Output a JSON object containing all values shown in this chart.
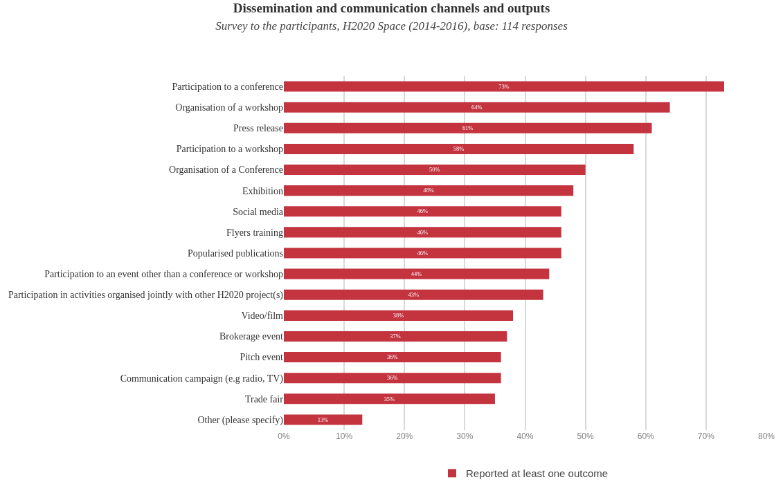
{
  "chart_data": {
    "type": "bar",
    "orientation": "horizontal",
    "title": "Dissemination and communication channels and outputs",
    "subtitle": "Survey to the participants, H2020 Space (2014-2016), base: 114 responses",
    "categories": [
      "Participation to a conference",
      "Organisation of a workshop",
      "Press release",
      "Participation to a workshop",
      "Organisation of a Conference",
      "Exhibition",
      "Social media",
      "Flyers training",
      "Popularised publications",
      "Participation to an event other than a conference or workshop",
      "Participation in activities organised jointly with other H2020 project(s)",
      "Video/film",
      "Brokerage event",
      "Pitch event",
      "Communication campaign (e.g radio, TV)",
      "Trade fair",
      "Other (please specify)"
    ],
    "series": [
      {
        "name": "Reported at least one outcome",
        "color": "#c3343f",
        "values": [
          73,
          64,
          61,
          58,
          50,
          48,
          46,
          46,
          46,
          44,
          43,
          38,
          37,
          36,
          36,
          35,
          13
        ],
        "value_labels": [
          "73%",
          "64%",
          "61%",
          "58%",
          "50%",
          "48%",
          "46%",
          "46%",
          "46%",
          "44%",
          "43%",
          "38%",
          "37%",
          "36%",
          "36%",
          "35%",
          "13%"
        ]
      }
    ],
    "xlim": [
      0,
      80
    ],
    "xticks": [
      {
        "value": 0,
        "label": "0%"
      },
      {
        "value": 10,
        "label": "10%"
      },
      {
        "value": 20,
        "label": "20%"
      },
      {
        "value": 30,
        "label": "30%"
      },
      {
        "value": 40,
        "label": "40%"
      },
      {
        "value": 50,
        "label": "50%"
      },
      {
        "value": 60,
        "label": "60%"
      },
      {
        "value": 70,
        "label": "70%"
      },
      {
        "value": 80,
        "label": "80%"
      }
    ],
    "grid": "x",
    "legend": "bottom"
  }
}
